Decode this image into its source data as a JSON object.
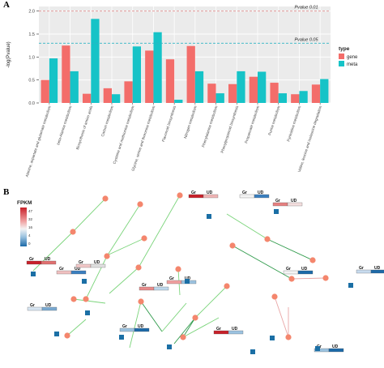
{
  "panel_a": {
    "label": "A",
    "ylabel": "-log(Pvalue)",
    "ref_lines": [
      {
        "label": "Pvalue 0.01",
        "value": 2.0,
        "color": "#e08b8b"
      },
      {
        "label": "Pvalue 0.05",
        "value": 1.3,
        "color": "#2fb5c4"
      }
    ],
    "legend": {
      "title": "type",
      "items": [
        "gene",
        "meta"
      ],
      "colors": [
        "#f36d6a",
        "#16c3c7"
      ]
    }
  },
  "panel_b": {
    "label": "B",
    "colorbar_title": "FPKM",
    "colorbar_ticks": [
      "47",
      "32",
      "16",
      "4",
      "0"
    ],
    "box_labels": [
      "Gr",
      "UD"
    ]
  },
  "chart_data": [
    {
      "type": "bar",
      "title": "",
      "ylabel": "-log(Pvalue)",
      "xlabel": "",
      "ylim": [
        0,
        2.1
      ],
      "yticks": [
        0.0,
        0.5,
        1.0,
        1.5,
        2.0
      ],
      "categories": [
        "Alanine, aspartate and glutamate metabolism",
        "beta-Alanine metabolism",
        "Biosynthesis of amino acids",
        "Carbon metabolism",
        "Cysteine and methionine metabolism",
        "Glycine, serine and threonine metabolism",
        "Flavonoid biosynthesis",
        "Nitrogen metabolism",
        "Phenylalanine metabolism",
        "Phenylpropanoid biosynthesis",
        "Propanoate metabolism",
        "Purine metabolism",
        "Pyrimidine metabolism",
        "Valine, leucine and isoleucine degradation"
      ],
      "series": [
        {
          "name": "gene",
          "color": "#f36d6a",
          "values": [
            0.5,
            1.25,
            0.2,
            0.32,
            0.47,
            1.14,
            0.95,
            1.24,
            0.42,
            0.41,
            0.57,
            0.44,
            0.19,
            0.4
          ]
        },
        {
          "name": "meta",
          "color": "#16c3c7",
          "values": [
            0.97,
            0.69,
            1.83,
            0.19,
            1.23,
            1.54,
            0.07,
            0.69,
            0.21,
            0.69,
            0.68,
            0.21,
            0.26,
            0.52
          ]
        }
      ],
      "legend_position": "right",
      "grid": true
    }
  ]
}
